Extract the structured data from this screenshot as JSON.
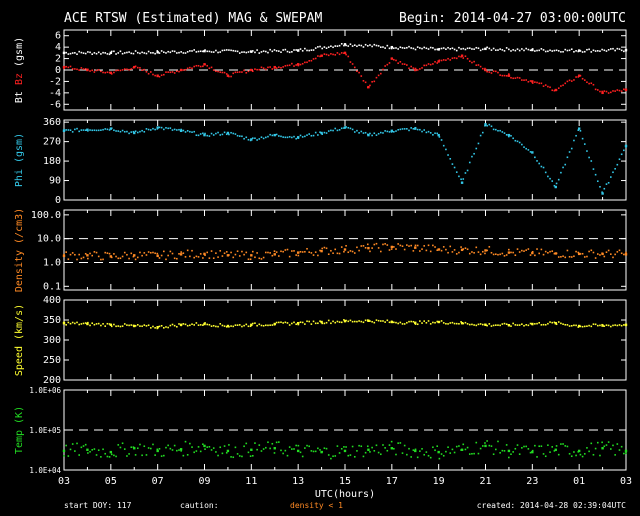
{
  "header": {
    "title": "ACE RTSW (Estimated) MAG & SWEPAM",
    "begin": "Begin: 2014-04-27 03:00:00UTC"
  },
  "footer": {
    "start_doy": "start DOY: 117",
    "caution_label": "caution:",
    "caution_text": "density < 1",
    "created": "created: 2014-04-28 02:39:04UTC"
  },
  "colors": {
    "bt": "#ffffff",
    "bz": "#ff2020",
    "phi": "#33c8e8",
    "density": "#ff8a24",
    "speed": "#ffff30",
    "temp": "#22dd22",
    "caution": "#ff8a24",
    "axis": "#ffffff"
  },
  "chart_data": [
    {
      "name": "mag",
      "type": "scatter",
      "ylabel_parts": [
        "Bt",
        "Bz",
        "(gsm)"
      ],
      "ylim": [
        -7,
        7
      ],
      "yticks": [
        "6",
        "4",
        "2",
        "0",
        "-2",
        "-4",
        "-6"
      ],
      "ytick_values": [
        6,
        4,
        2,
        0,
        -2,
        -4,
        -6
      ],
      "dashed_lines": [
        0
      ],
      "series": [
        {
          "name": "Bt",
          "color": "#ffffff",
          "x": [
            0,
            2,
            4,
            6,
            8,
            10,
            12,
            14,
            16,
            18,
            20,
            22,
            24
          ],
          "values": [
            3.0,
            3.0,
            3.1,
            3.3,
            3.2,
            3.4,
            4.5,
            4.0,
            3.6,
            3.7,
            3.5,
            3.4,
            3.5
          ]
        },
        {
          "name": "Bz",
          "color": "#ff2020",
          "x": [
            0,
            1,
            2,
            3,
            4,
            5,
            6,
            7,
            8,
            9,
            10,
            11,
            12,
            13,
            14,
            15,
            16,
            17,
            18,
            19,
            20,
            21,
            22,
            23,
            24
          ],
          "values": [
            0.5,
            0.0,
            -0.5,
            0.5,
            -1.0,
            0.0,
            1.0,
            -1.0,
            0.0,
            0.5,
            1.0,
            2.5,
            3.0,
            -3.0,
            2.0,
            0.0,
            1.5,
            2.5,
            0.0,
            -1.0,
            -2.0,
            -3.5,
            -1.0,
            -4.0,
            -3.5
          ]
        }
      ]
    },
    {
      "name": "phi",
      "type": "scatter",
      "ylabel": "Phi (gsm)",
      "ylim": [
        0,
        370
      ],
      "yticks": [
        "360",
        "270",
        "180",
        "90",
        "0"
      ],
      "ytick_values": [
        360,
        270,
        180,
        90,
        0
      ],
      "series": [
        {
          "name": "Phi",
          "color": "#33c8e8",
          "x": [
            0,
            1,
            2,
            3,
            4,
            5,
            6,
            7,
            8,
            9,
            10,
            11,
            12,
            13,
            14,
            15,
            16,
            17,
            18,
            19,
            20,
            21,
            22,
            23,
            24
          ],
          "values": [
            320,
            325,
            330,
            310,
            335,
            320,
            300,
            310,
            280,
            300,
            290,
            310,
            335,
            300,
            320,
            330,
            300,
            80,
            350,
            300,
            220,
            60,
            330,
            30,
            250
          ]
        }
      ]
    },
    {
      "name": "density",
      "type": "scatter",
      "ylabel": "Density (/cm3)",
      "yscale": "log",
      "ylim": [
        0.07,
        160
      ],
      "yticks": [
        "100.0",
        "10.0",
        "1.0",
        "0.1"
      ],
      "ytick_values": [
        100,
        10,
        1,
        0.1
      ],
      "dashed_lines": [
        10,
        1
      ],
      "series": [
        {
          "name": "Density",
          "color": "#ff8a24",
          "x": [
            0,
            1,
            2,
            3,
            4,
            5,
            6,
            7,
            8,
            9,
            10,
            11,
            12,
            13,
            14,
            15,
            16,
            17,
            18,
            19,
            20,
            21,
            22,
            23,
            24
          ],
          "values": [
            1.9,
            2.0,
            1.8,
            2.0,
            1.9,
            2.2,
            2.3,
            2.0,
            2.0,
            2.2,
            2.6,
            3.0,
            3.5,
            4.0,
            4.5,
            4.2,
            3.5,
            3.4,
            3.2,
            2.6,
            2.5,
            2.4,
            2.3,
            2.3,
            2.2
          ]
        }
      ]
    },
    {
      "name": "speed",
      "type": "scatter",
      "ylabel": "Speed (km/s)",
      "ylim": [
        200,
        400
      ],
      "yticks": [
        "400",
        "350",
        "300",
        "250",
        "200"
      ],
      "ytick_values": [
        400,
        350,
        300,
        250,
        200
      ],
      "series": [
        {
          "name": "Speed",
          "color": "#ffff30",
          "x": [
            0,
            1,
            2,
            3,
            4,
            5,
            6,
            7,
            8,
            9,
            10,
            11,
            12,
            13,
            14,
            15,
            16,
            17,
            18,
            19,
            20,
            21,
            22,
            23,
            24
          ],
          "values": [
            342,
            340,
            338,
            335,
            332,
            338,
            340,
            335,
            338,
            340,
            342,
            345,
            347,
            348,
            345,
            343,
            345,
            342,
            338,
            337,
            340,
            342,
            335,
            336,
            338
          ]
        }
      ]
    },
    {
      "name": "temp",
      "type": "scatter",
      "ylabel": "Temp (K)",
      "yscale": "log",
      "ylim": [
        10000,
        1000000
      ],
      "yticks": [
        "1.0E+06",
        "1.0E+05",
        "1.0E+04"
      ],
      "ytick_values": [
        1000000,
        100000,
        10000
      ],
      "dashed_lines": [
        100000
      ],
      "series": [
        {
          "name": "Temp",
          "color": "#22dd22",
          "x": [
            0,
            1,
            2,
            3,
            4,
            5,
            6,
            7,
            8,
            9,
            10,
            11,
            12,
            13,
            14,
            15,
            16,
            17,
            18,
            19,
            20,
            21,
            22,
            23,
            24
          ],
          "values": [
            30000,
            32000,
            28000,
            35000,
            30000,
            33000,
            40000,
            30000,
            32000,
            35000,
            30000,
            28000,
            30000,
            32000,
            35000,
            30000,
            28000,
            32000,
            40000,
            30000,
            28000,
            32000,
            30000,
            35000,
            30000
          ]
        }
      ]
    }
  ],
  "xaxis": {
    "label": "UTC(hours)",
    "ticks": [
      "03",
      "05",
      "07",
      "09",
      "11",
      "13",
      "15",
      "17",
      "19",
      "21",
      "23",
      "01",
      "03"
    ],
    "tick_values": [
      0,
      2,
      4,
      6,
      8,
      10,
      12,
      14,
      16,
      18,
      20,
      22,
      24
    ],
    "xlim": [
      0,
      24
    ]
  }
}
